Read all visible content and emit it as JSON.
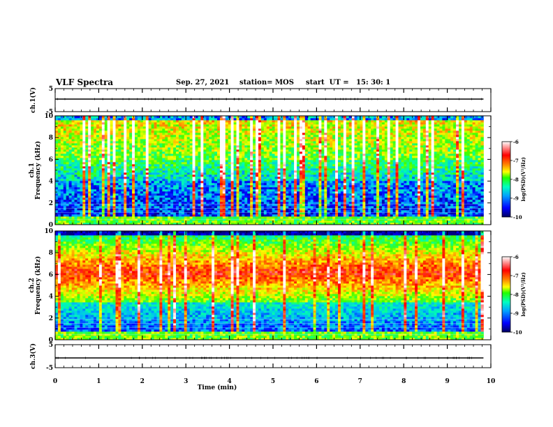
{
  "header": {
    "title": "VLF Spectra",
    "date": "Sep. 27, 2021",
    "station": "station= MOS",
    "start": "start  UT =   15: 30: 1"
  },
  "chart_data": [
    {
      "type": "line",
      "name": "ch1-waveform",
      "ylabel": "ch.1(V)",
      "ylim": [
        -5,
        5
      ],
      "yticks": [
        "5",
        "-5"
      ],
      "xlim": [
        0,
        10
      ]
    },
    {
      "type": "heatmap",
      "name": "ch1-spectrogram",
      "ylabel": "ch.1\nFrequency (kHz)",
      "ylim": [
        0,
        10
      ],
      "yticks": [
        "0",
        "2",
        "4",
        "6",
        "8",
        "10"
      ],
      "xlim": [
        0,
        10
      ],
      "data_extent_min": 9.83,
      "colorbar": {
        "label": "log(PSD)(V²/Hz)",
        "range": [
          -10,
          -6
        ],
        "ticks": [
          "-6",
          "-7",
          "-8",
          "-9",
          "-10"
        ]
      },
      "band_activity": "broadband impulsive vertical streaks (sferics), strongest 6-10 kHz"
    },
    {
      "type": "heatmap",
      "name": "ch2-spectrogram",
      "ylabel": "ch.2\nFrequency (kHz)",
      "ylim": [
        0,
        10
      ],
      "yticks": [
        "0",
        "2",
        "4",
        "6",
        "8",
        "10"
      ],
      "xlim": [
        0,
        10
      ],
      "data_extent_min": 9.83,
      "colorbar": {
        "label": "log(PSD)(V²/Hz)",
        "range": [
          -10,
          -6
        ],
        "ticks": [
          "-6",
          "-7",
          "-8",
          "-9",
          "-10"
        ]
      },
      "band_activity": "continuous intense band ~4-8 kHz"
    },
    {
      "type": "line",
      "name": "ch3-waveform",
      "ylabel": "ch.3(V)",
      "ylim": [
        -5,
        5
      ],
      "yticks": [
        "5",
        "-5"
      ],
      "xlim": [
        0,
        10
      ]
    }
  ],
  "xaxis": {
    "label": "Time (min)",
    "ticks": [
      "0",
      "1",
      "2",
      "3",
      "4",
      "5",
      "6",
      "7",
      "8",
      "9",
      "10"
    ]
  },
  "colors": {
    "colormap": [
      "#000080",
      "#0000ff",
      "#00b0ff",
      "#00ffb0",
      "#40ff00",
      "#ffff00",
      "#ff8000",
      "#ff0000",
      "#ffffff"
    ]
  }
}
